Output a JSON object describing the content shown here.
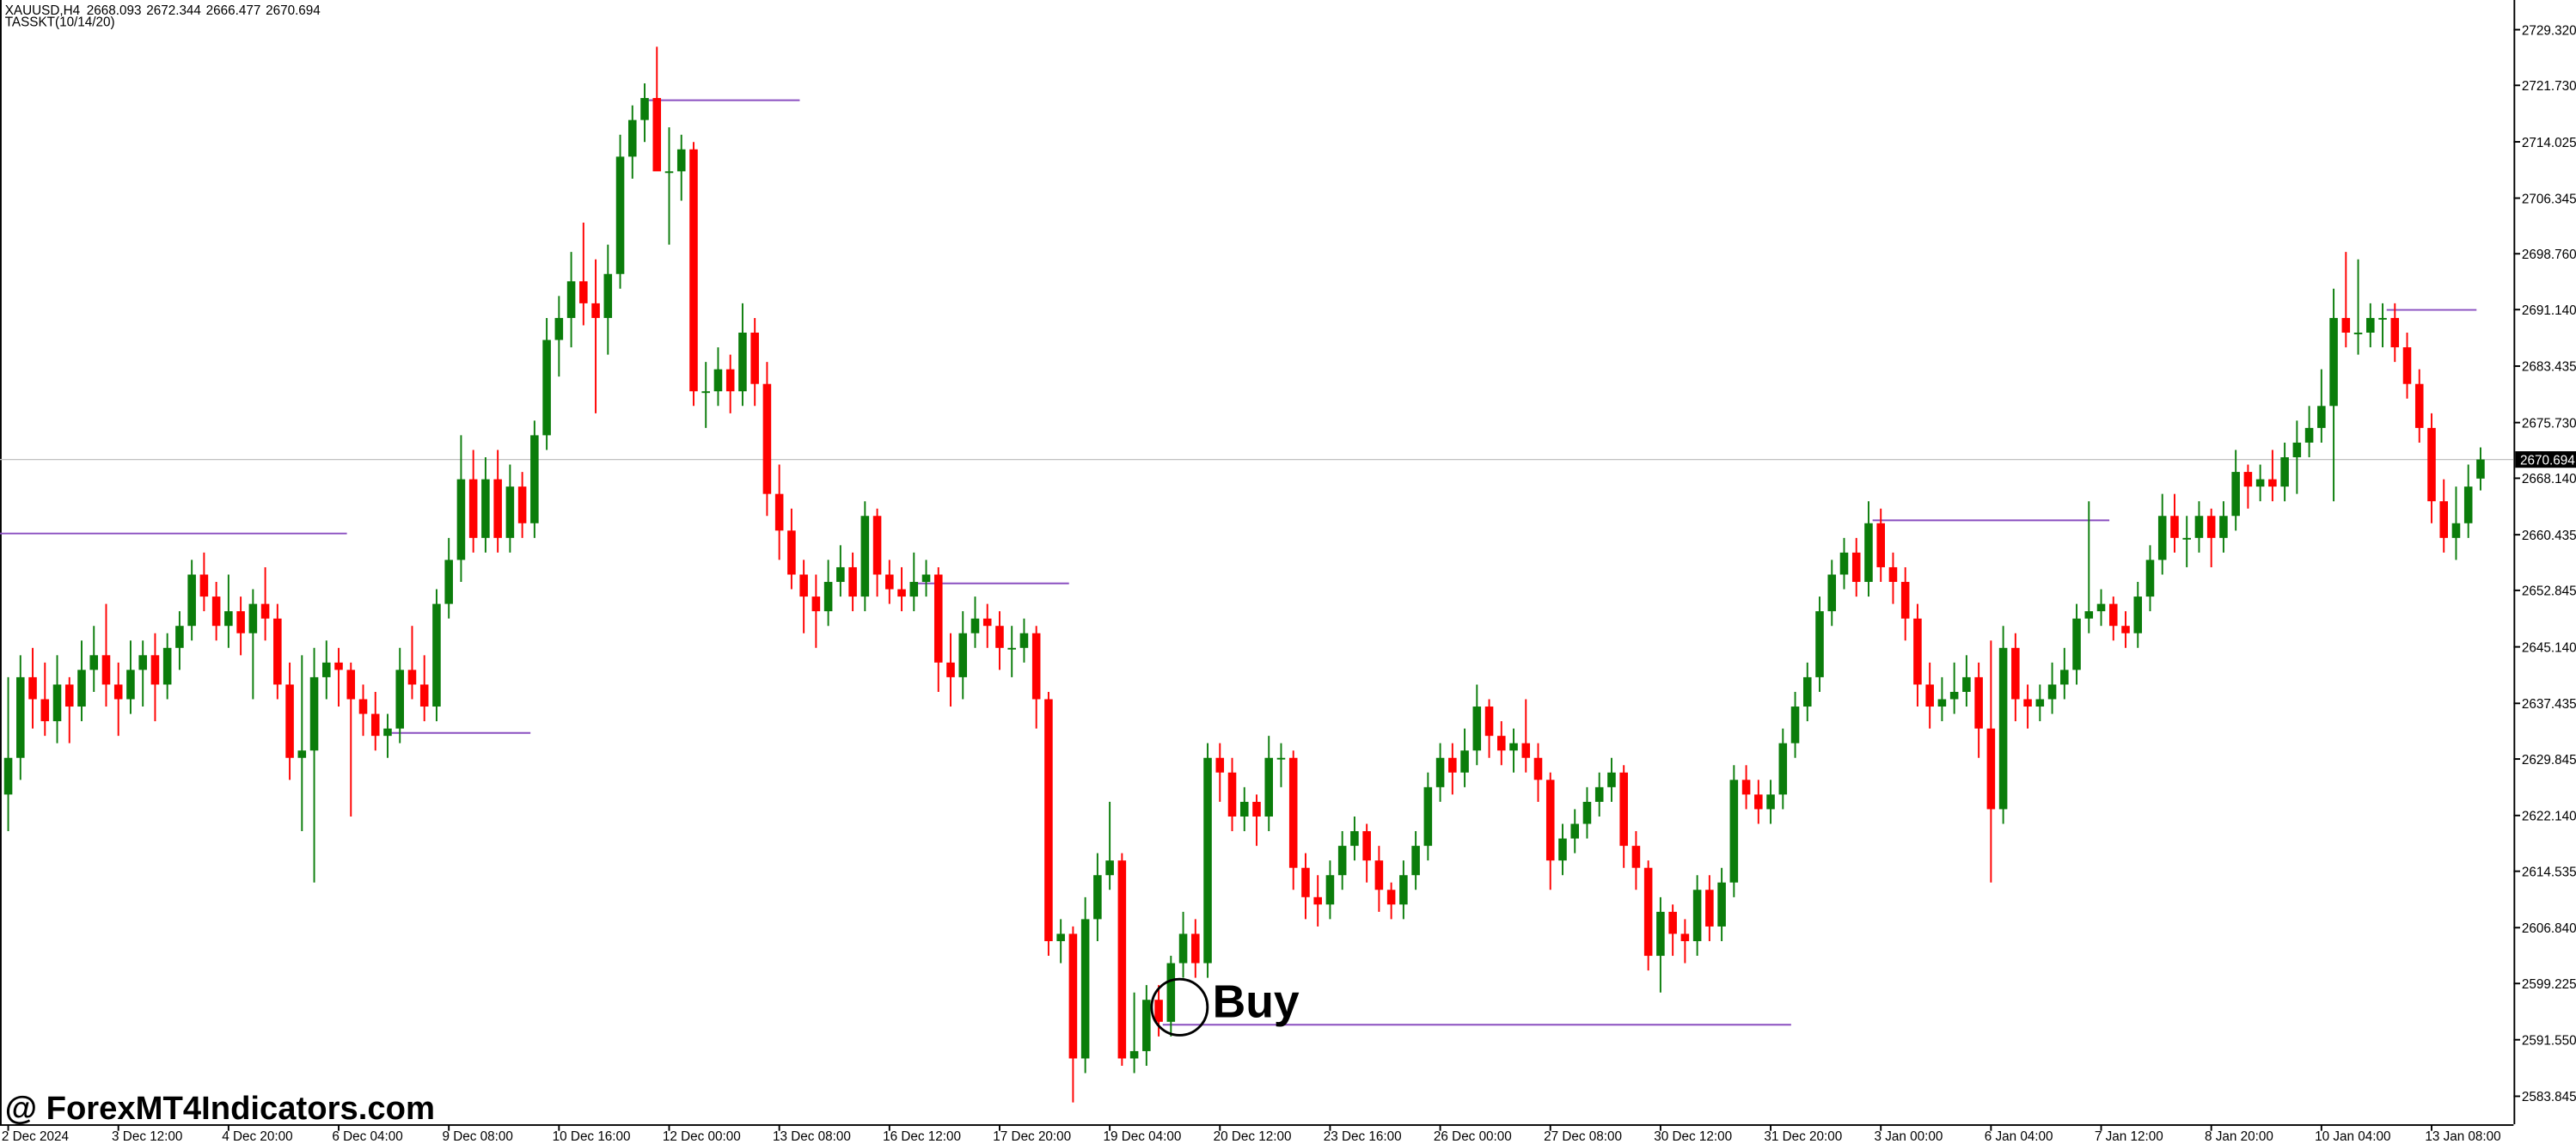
{
  "chart_data": {
    "type": "candlestick",
    "symbol": "XAUUSD,H4",
    "indicator": "TASSKT(10/14/20)",
    "annotation": "Buy",
    "watermark": "@ ForexMT4Indicators.com",
    "ylim": [
      2580.03,
      2733.37
    ],
    "yticks": [
      {
        "value": 2729.32,
        "label": "2729.320"
      },
      {
        "value": 2721.73,
        "label": "2721.730"
      },
      {
        "value": 2714.025,
        "label": "2714.025"
      },
      {
        "value": 2706.345,
        "label": "2706.345"
      },
      {
        "value": 2698.76,
        "label": "2698.760"
      },
      {
        "value": 2691.14,
        "label": "2691.140"
      },
      {
        "value": 2683.435,
        "label": "2683.435"
      },
      {
        "value": 2675.73,
        "label": "2675.730"
      },
      {
        "value": 2668.14,
        "label": "2668.140"
      },
      {
        "value": 2660.435,
        "label": "2660.435"
      },
      {
        "value": 2652.845,
        "label": "2652.845"
      },
      {
        "value": 2645.14,
        "label": "2645.140"
      },
      {
        "value": 2637.435,
        "label": "2637.435"
      },
      {
        "value": 2629.845,
        "label": "2629.845"
      },
      {
        "value": 2622.14,
        "label": "2622.140"
      },
      {
        "value": 2614.535,
        "label": "2614.535"
      },
      {
        "value": 2606.84,
        "label": "2606.840"
      },
      {
        "value": 2599.225,
        "label": "2599.225"
      },
      {
        "value": 2591.55,
        "label": "2591.550"
      },
      {
        "value": 2583.845,
        "label": "2583.845"
      }
    ],
    "categories": [
      "2 Dec 2024",
      null,
      null,
      null,
      null,
      null,
      null,
      null,
      null,
      "3 Dec 12:00",
      null,
      null,
      null,
      null,
      null,
      null,
      null,
      null,
      "4 Dec 20:00",
      null,
      null,
      null,
      null,
      null,
      null,
      null,
      null,
      "6 Dec 04:00",
      null,
      null,
      null,
      null,
      null,
      null,
      null,
      null,
      "9 Dec 08:00",
      null,
      null,
      null,
      null,
      null,
      null,
      null,
      null,
      "10 Dec 16:00",
      null,
      null,
      null,
      null,
      null,
      null,
      null,
      null,
      "12 Dec 00:00",
      null,
      null,
      null,
      null,
      null,
      null,
      null,
      null,
      "13 Dec 08:00",
      null,
      null,
      null,
      null,
      null,
      null,
      null,
      null,
      "16 Dec 12:00",
      null,
      null,
      null,
      null,
      null,
      null,
      null,
      null,
      "17 Dec 20:00",
      null,
      null,
      null,
      null,
      null,
      null,
      null,
      null,
      "19 Dec 04:00",
      null,
      null,
      null,
      null,
      null,
      null,
      null,
      null,
      "20 Dec 12:00",
      null,
      null,
      null,
      null,
      null,
      null,
      null,
      null,
      "23 Dec 16:00",
      null,
      null,
      null,
      null,
      null,
      null,
      null,
      null,
      "26 Dec 00:00",
      null,
      null,
      null,
      null,
      null,
      null,
      null,
      null,
      "27 Dec 08:00",
      null,
      null,
      null,
      null,
      null,
      null,
      null,
      null,
      "30 Dec 12:00",
      null,
      null,
      null,
      null,
      null,
      null,
      null,
      null,
      "31 Dec 20:00",
      null,
      null,
      null,
      null,
      null,
      null,
      null,
      null,
      "3 Jan 00:00",
      null,
      null,
      null,
      null,
      null,
      null,
      null,
      null,
      "6 Jan 04:00",
      null,
      null,
      null,
      null,
      null,
      null,
      null,
      null,
      "7 Jan 12:00",
      null,
      null,
      null,
      null,
      null,
      null,
      null,
      null,
      "8 Jan 20:00",
      null,
      null,
      null,
      null,
      null,
      null,
      null,
      null,
      "10 Jan 04:00",
      null,
      null,
      null,
      null,
      null,
      null,
      null,
      null,
      "13 Jan 08:00",
      null,
      null,
      null,
      null
    ],
    "bull_color": "#0b7d0b",
    "bear_color": "#ff0000",
    "level_color": "#8a4fc0",
    "levels": [
      {
        "value": 2660.6,
        "from": 0,
        "to": 27
      },
      {
        "value": 2633.4,
        "from": 32,
        "to": 42
      },
      {
        "value": 2719.7,
        "from": 53,
        "to": 64
      },
      {
        "value": 2653.8,
        "from": 75,
        "to": 86
      },
      {
        "value": 2593.6,
        "from": 95,
        "to": 145
      },
      {
        "value": 2662.4,
        "from": 153,
        "to": 171
      },
      {
        "value": 2691.1,
        "from": 195,
        "to": 201
      }
    ],
    "ohlc": [
      [
        2625,
        2641,
        2620,
        2630
      ],
      [
        2630,
        2644,
        2627,
        2641
      ],
      [
        2641,
        2645,
        2634,
        2638
      ],
      [
        2638,
        2643,
        2633,
        2635
      ],
      [
        2635,
        2644,
        2632,
        2640
      ],
      [
        2640,
        2641,
        2632,
        2637
      ],
      [
        2637,
        2646,
        2635,
        2642
      ],
      [
        2642,
        2648,
        2639,
        2644
      ],
      [
        2644,
        2651,
        2637,
        2640
      ],
      [
        2640,
        2643,
        2633,
        2638
      ],
      [
        2638,
        2646,
        2636,
        2642
      ],
      [
        2642,
        2646,
        2637,
        2644
      ],
      [
        2644,
        2647,
        2635,
        2640
      ],
      [
        2640,
        2647,
        2638,
        2645
      ],
      [
        2645,
        2650,
        2642,
        2648
      ],
      [
        2648,
        2657,
        2646,
        2655
      ],
      [
        2655,
        2658,
        2650,
        2652
      ],
      [
        2652,
        2654,
        2646,
        2648
      ],
      [
        2648,
        2655,
        2645,
        2650
      ],
      [
        2650,
        2652,
        2644,
        2647
      ],
      [
        2647,
        2653,
        2638,
        2651
      ],
      [
        2651,
        2656,
        2646,
        2649
      ],
      [
        2649,
        2651,
        2638,
        2640
      ],
      [
        2640,
        2643,
        2627,
        2630
      ],
      [
        2630,
        2644,
        2620,
        2631
      ],
      [
        2631,
        2645,
        2613,
        2641
      ],
      [
        2641,
        2646,
        2638,
        2643
      ],
      [
        2643,
        2645,
        2637,
        2642
      ],
      [
        2642,
        2643,
        2622,
        2638
      ],
      [
        2638,
        2640,
        2633,
        2636
      ],
      [
        2636,
        2639,
        2631,
        2633
      ],
      [
        2633,
        2636,
        2630,
        2634
      ],
      [
        2634,
        2645,
        2632,
        2642
      ],
      [
        2642,
        2648,
        2638,
        2640
      ],
      [
        2640,
        2644,
        2635,
        2637
      ],
      [
        2637,
        2653,
        2635,
        2651
      ],
      [
        2651,
        2660,
        2649,
        2657
      ],
      [
        2657,
        2674,
        2654,
        2668
      ],
      [
        2668,
        2672,
        2658,
        2660
      ],
      [
        2660,
        2671,
        2658,
        2668
      ],
      [
        2668,
        2672,
        2658,
        2660
      ],
      [
        2660,
        2670,
        2658,
        2667
      ],
      [
        2667,
        2669,
        2660,
        2662
      ],
      [
        2662,
        2676,
        2660,
        2674
      ],
      [
        2674,
        2690,
        2672,
        2687
      ],
      [
        2687,
        2693,
        2682,
        2690
      ],
      [
        2690,
        2699,
        2686,
        2695
      ],
      [
        2695,
        2703,
        2689,
        2692
      ],
      [
        2692,
        2698,
        2677,
        2690
      ],
      [
        2690,
        2700,
        2685,
        2696
      ],
      [
        2696,
        2715,
        2694,
        2712
      ],
      [
        2712,
        2719,
        2709,
        2717
      ],
      [
        2717,
        2722,
        2714,
        2720
      ],
      [
        2720,
        2727,
        2711,
        2710
      ],
      [
        2710,
        2716,
        2700,
        2710
      ],
      [
        2710,
        2715,
        2706,
        2713
      ],
      [
        2713,
        2714,
        2678,
        2680
      ],
      [
        2680,
        2684,
        2675,
        2680
      ],
      [
        2680,
        2686,
        2678,
        2683
      ],
      [
        2683,
        2685,
        2677,
        2680
      ],
      [
        2680,
        2692,
        2678,
        2688
      ],
      [
        2688,
        2690,
        2678,
        2681
      ],
      [
        2681,
        2684,
        2663,
        2666
      ],
      [
        2666,
        2670,
        2657,
        2661
      ],
      [
        2661,
        2664,
        2653,
        2655
      ],
      [
        2655,
        2657,
        2647,
        2652
      ],
      [
        2652,
        2655,
        2645,
        2650
      ],
      [
        2650,
        2657,
        2648,
        2654
      ],
      [
        2654,
        2659,
        2652,
        2656
      ],
      [
        2656,
        2658,
        2650,
        2652
      ],
      [
        2652,
        2665,
        2650,
        2663
      ],
      [
        2663,
        2664,
        2652,
        2655
      ],
      [
        2655,
        2657,
        2651,
        2653
      ],
      [
        2653,
        2656,
        2650,
        2652
      ],
      [
        2652,
        2658,
        2650,
        2654
      ],
      [
        2654,
        2657,
        2652,
        2655
      ],
      [
        2655,
        2656,
        2639,
        2643
      ],
      [
        2643,
        2647,
        2637,
        2641
      ],
      [
        2641,
        2650,
        2638,
        2647
      ],
      [
        2647,
        2652,
        2645,
        2649
      ],
      [
        2649,
        2651,
        2645,
        2648
      ],
      [
        2648,
        2650,
        2642,
        2645
      ],
      [
        2645,
        2648,
        2641,
        2645
      ],
      [
        2645,
        2649,
        2643,
        2647
      ],
      [
        2647,
        2648,
        2634,
        2638
      ],
      [
        2638,
        2639,
        2603,
        2605
      ],
      [
        2605,
        2608,
        2602,
        2606
      ],
      [
        2606,
        2607,
        2583,
        2589
      ],
      [
        2589,
        2611,
        2587,
        2608
      ],
      [
        2608,
        2617,
        2605,
        2614
      ],
      [
        2614,
        2624,
        2612,
        2616
      ],
      [
        2616,
        2617,
        2588,
        2589
      ],
      [
        2589,
        2598,
        2587,
        2590
      ],
      [
        2590,
        2599,
        2588,
        2597
      ],
      [
        2597,
        2599,
        2592,
        2594
      ],
      [
        2594,
        2603,
        2592,
        2602
      ],
      [
        2602,
        2609,
        2600,
        2606
      ],
      [
        2606,
        2608,
        2600,
        2602
      ],
      [
        2602,
        2632,
        2600,
        2630
      ],
      [
        2630,
        2632,
        2624,
        2628
      ],
      [
        2628,
        2630,
        2620,
        2622
      ],
      [
        2622,
        2626,
        2620,
        2624
      ],
      [
        2624,
        2625,
        2618,
        2622
      ],
      [
        2622,
        2633,
        2620,
        2630
      ],
      [
        2630,
        2632,
        2626,
        2630
      ],
      [
        2630,
        2631,
        2612,
        2615
      ],
      [
        2615,
        2617,
        2608,
        2611
      ],
      [
        2611,
        2614,
        2607,
        2610
      ],
      [
        2610,
        2616,
        2608,
        2614
      ],
      [
        2614,
        2620,
        2612,
        2618
      ],
      [
        2618,
        2622,
        2616,
        2620
      ],
      [
        2620,
        2621,
        2613,
        2616
      ],
      [
        2616,
        2618,
        2609,
        2612
      ],
      [
        2612,
        2613,
        2608,
        2610
      ],
      [
        2610,
        2616,
        2608,
        2614
      ],
      [
        2614,
        2620,
        2612,
        2618
      ],
      [
        2618,
        2628,
        2616,
        2626
      ],
      [
        2626,
        2632,
        2624,
        2630
      ],
      [
        2630,
        2632,
        2625,
        2628
      ],
      [
        2628,
        2634,
        2626,
        2631
      ],
      [
        2631,
        2640,
        2629,
        2637
      ],
      [
        2637,
        2638,
        2630,
        2633
      ],
      [
        2633,
        2635,
        2629,
        2631
      ],
      [
        2631,
        2634,
        2628,
        2632
      ],
      [
        2632,
        2638,
        2628,
        2630
      ],
      [
        2630,
        2632,
        2624,
        2627
      ],
      [
        2627,
        2628,
        2612,
        2616
      ],
      [
        2616,
        2621,
        2614,
        2619
      ],
      [
        2619,
        2623,
        2617,
        2621
      ],
      [
        2621,
        2626,
        2619,
        2624
      ],
      [
        2624,
        2628,
        2622,
        2626
      ],
      [
        2626,
        2630,
        2624,
        2628
      ],
      [
        2628,
        2629,
        2615,
        2618
      ],
      [
        2618,
        2620,
        2612,
        2615
      ],
      [
        2615,
        2616,
        2601,
        2603
      ],
      [
        2603,
        2611,
        2598,
        2609
      ],
      [
        2609,
        2610,
        2603,
        2606
      ],
      [
        2606,
        2608,
        2602,
        2605
      ],
      [
        2605,
        2614,
        2603,
        2612
      ],
      [
        2612,
        2614,
        2605,
        2607
      ],
      [
        2607,
        2615,
        2605,
        2613
      ],
      [
        2613,
        2629,
        2611,
        2627
      ],
      [
        2627,
        2629,
        2623,
        2625
      ],
      [
        2625,
        2627,
        2621,
        2623
      ],
      [
        2623,
        2627,
        2621,
        2625
      ],
      [
        2625,
        2634,
        2623,
        2632
      ],
      [
        2632,
        2639,
        2630,
        2637
      ],
      [
        2637,
        2643,
        2635,
        2641
      ],
      [
        2641,
        2652,
        2639,
        2650
      ],
      [
        2650,
        2657,
        2648,
        2655
      ],
      [
        2655,
        2660,
        2653,
        2658
      ],
      [
        2658,
        2660,
        2652,
        2654
      ],
      [
        2654,
        2665,
        2652,
        2662
      ],
      [
        2662,
        2664,
        2654,
        2656
      ],
      [
        2656,
        2658,
        2651,
        2654
      ],
      [
        2654,
        2656,
        2646,
        2649
      ],
      [
        2649,
        2651,
        2637,
        2640
      ],
      [
        2640,
        2643,
        2634,
        2637
      ],
      [
        2637,
        2641,
        2635,
        2638
      ],
      [
        2638,
        2643,
        2636,
        2639
      ],
      [
        2639,
        2644,
        2637,
        2641
      ],
      [
        2641,
        2643,
        2630,
        2634
      ],
      [
        2634,
        2646,
        2613,
        2623
      ],
      [
        2623,
        2648,
        2621,
        2645
      ],
      [
        2645,
        2647,
        2635,
        2638
      ],
      [
        2638,
        2640,
        2634,
        2637
      ],
      [
        2637,
        2640,
        2635,
        2638
      ],
      [
        2638,
        2643,
        2636,
        2640
      ],
      [
        2640,
        2645,
        2638,
        2642
      ],
      [
        2642,
        2651,
        2640,
        2649
      ],
      [
        2649,
        2665,
        2647,
        2650
      ],
      [
        2650,
        2653,
        2648,
        2651
      ],
      [
        2651,
        2652,
        2646,
        2648
      ],
      [
        2648,
        2650,
        2645,
        2647
      ],
      [
        2647,
        2654,
        2645,
        2652
      ],
      [
        2652,
        2659,
        2650,
        2657
      ],
      [
        2657,
        2666,
        2655,
        2663
      ],
      [
        2663,
        2666,
        2658,
        2660
      ],
      [
        2660,
        2663,
        2656,
        2660
      ],
      [
        2660,
        2665,
        2658,
        2663
      ],
      [
        2663,
        2664,
        2656,
        2660
      ],
      [
        2660,
        2665,
        2658,
        2663
      ],
      [
        2663,
        2672,
        2661,
        2669
      ],
      [
        2669,
        2670,
        2664,
        2667
      ],
      [
        2667,
        2670,
        2665,
        2668
      ],
      [
        2668,
        2672,
        2665,
        2667
      ],
      [
        2667,
        2673,
        2665,
        2671
      ],
      [
        2671,
        2676,
        2666,
        2673
      ],
      [
        2673,
        2678,
        2671,
        2675
      ],
      [
        2675,
        2683,
        2673,
        2678
      ],
      [
        2678,
        2694,
        2665,
        2690
      ],
      [
        2690,
        2699,
        2686,
        2688
      ],
      [
        2688,
        2698,
        2685,
        2688
      ],
      [
        2688,
        2692,
        2686,
        2690
      ],
      [
        2690,
        2692,
        2686,
        2690
      ],
      [
        2690,
        2692,
        2684,
        2686
      ],
      [
        2686,
        2688,
        2679,
        2681
      ],
      [
        2681,
        2683,
        2673,
        2675
      ],
      [
        2675,
        2677,
        2662,
        2665
      ],
      [
        2665,
        2668,
        2658,
        2660
      ],
      [
        2660,
        2667,
        2657,
        2662
      ],
      [
        2662,
        2670,
        2660,
        2667
      ],
      [
        2668.093,
        2672.344,
        2666.477,
        2670.694
      ]
    ]
  }
}
